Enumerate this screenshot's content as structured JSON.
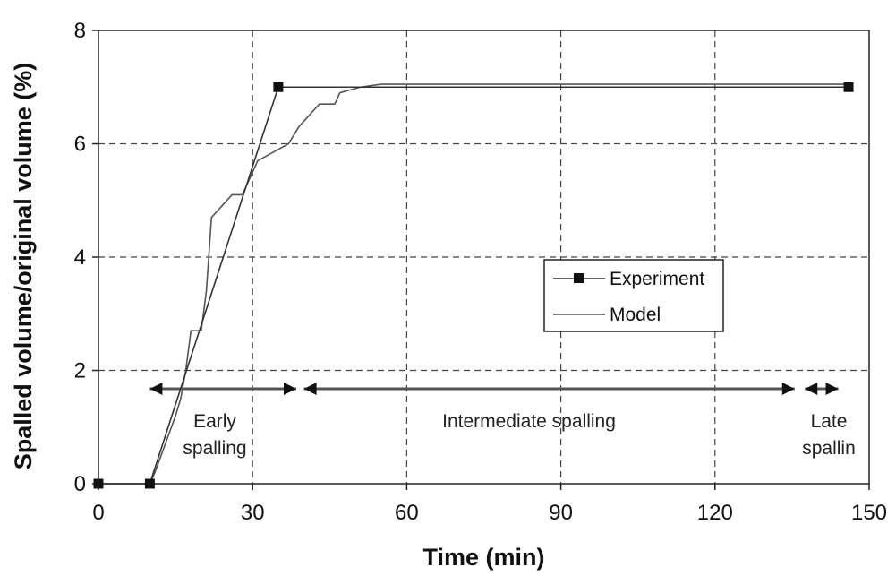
{
  "chart_data": {
    "type": "line",
    "xlabel": "Time (min)",
    "ylabel": "Spalled volume/original volume (%)",
    "xlim": [
      0,
      150
    ],
    "ylim": [
      0,
      8
    ],
    "x_ticks": [
      "0",
      "30",
      "60",
      "90",
      "120",
      "150"
    ],
    "y_ticks": [
      "0",
      "2",
      "4",
      "6",
      "8"
    ],
    "grid": "dashed",
    "legend": "center-right",
    "series": [
      {
        "name": "Experiment",
        "marker": "square",
        "points": [
          [
            0,
            0
          ],
          [
            10,
            0
          ],
          [
            35,
            7.0
          ],
          [
            146,
            7.0
          ]
        ]
      },
      {
        "name": "Model",
        "marker": "none",
        "points": [
          [
            0,
            0
          ],
          [
            10,
            0
          ],
          [
            11,
            0.2
          ],
          [
            13,
            0.7
          ],
          [
            15,
            1.2
          ],
          [
            16,
            1.5
          ],
          [
            17,
            2.0
          ],
          [
            18,
            2.7
          ],
          [
            20,
            2.7
          ],
          [
            21,
            3.4
          ],
          [
            22,
            4.7
          ],
          [
            24,
            4.9
          ],
          [
            26,
            5.1
          ],
          [
            28,
            5.1
          ],
          [
            30,
            5.5
          ],
          [
            31,
            5.7
          ],
          [
            33,
            5.8
          ],
          [
            35,
            5.9
          ],
          [
            37,
            6.0
          ],
          [
            39,
            6.3
          ],
          [
            41,
            6.5
          ],
          [
            43,
            6.7
          ],
          [
            46,
            6.7
          ],
          [
            47,
            6.9
          ],
          [
            49,
            6.95
          ],
          [
            51,
            7.0
          ],
          [
            55,
            7.05
          ],
          [
            146,
            7.05
          ]
        ]
      }
    ],
    "annotations": [
      {
        "label_lines": [
          "Early",
          "spalling"
        ],
        "x_range": [
          10,
          38.5
        ]
      },
      {
        "label_lines": [
          "Intermediate spalling"
        ],
        "x_range": [
          40,
          135.5
        ]
      },
      {
        "label_lines": [
          "Late",
          "spallin"
        ],
        "x_range": [
          137.5,
          144
        ]
      }
    ]
  }
}
